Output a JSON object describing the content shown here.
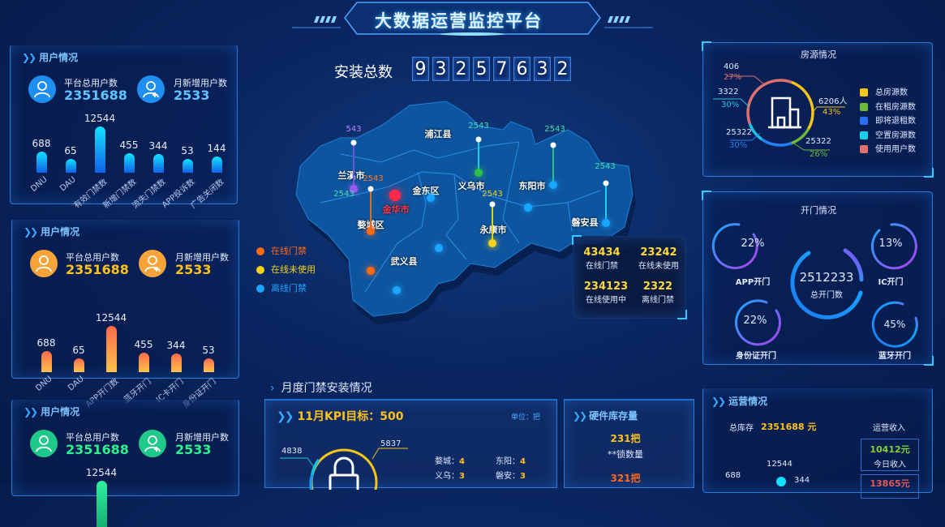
{
  "header": {
    "title": "大数据运营监控平台"
  },
  "install": {
    "label": "安装总数",
    "digits": [
      "9",
      "3",
      "2",
      "5",
      "7",
      "6",
      "3",
      "2"
    ]
  },
  "user_panels": [
    {
      "title": "用户情况",
      "total_label": "平台总用户数",
      "total": "2351688",
      "new_label": "月新增用户数",
      "new": "2533",
      "accent": "#1e8ff0",
      "value_color": "#5fc3ff",
      "bars": [
        {
          "label": "DNU",
          "value": 688
        },
        {
          "label": "DAU",
          "value": 65
        },
        {
          "label": "有效门禁数",
          "value": 12544
        },
        {
          "label": "新增门禁数",
          "value": 455
        },
        {
          "label": "流失门禁数",
          "value": 344
        },
        {
          "label": "APP投诉数",
          "value": 53
        },
        {
          "label": "广告关闭数",
          "value": 144
        }
      ]
    },
    {
      "title": "用户情况",
      "total_label": "平台总用户数",
      "total": "2351688",
      "new_label": "月新增用户数",
      "new": "2533",
      "accent": "#f7a33a",
      "value_color": "#ffc21a",
      "bars": [
        {
          "label": "DNU",
          "value": 688
        },
        {
          "label": "DAU",
          "value": 65
        },
        {
          "label": "APP开门数",
          "value": 12544
        },
        {
          "label": "蓝牙开门",
          "value": 455
        },
        {
          "label": "IC卡开门",
          "value": 344
        },
        {
          "label": "身份证开门",
          "value": 53
        }
      ]
    },
    {
      "title": "用户情况",
      "total_label": "平台总用户数",
      "total": "2351688",
      "new_label": "月新增用户数",
      "new": "2533",
      "accent": "#1fc98a",
      "value_color": "#2ef08e",
      "bars": [
        {
          "label": "",
          "value": 12544
        }
      ]
    }
  ],
  "map": {
    "regions": [
      "浦江县",
      "兰溪市",
      "金东区",
      "义乌市",
      "东阳市",
      "金华市",
      "婺城区",
      "永康市",
      "磐安县",
      "武义县"
    ],
    "pin_values": [
      "543",
      "2543",
      "2543",
      "2543",
      "2543",
      "2543",
      "2543"
    ],
    "legend": [
      {
        "label": "在线门禁",
        "color": "#ff6a13"
      },
      {
        "label": "在线未使用",
        "color": "#f2d31a"
      },
      {
        "label": "离线门禁",
        "color": "#1aa6ff"
      }
    ]
  },
  "stats": [
    {
      "value": "43434",
      "label": "在线门禁"
    },
    {
      "value": "23242",
      "label": "在线未使用"
    },
    {
      "value": "234123",
      "label": "在线使用中"
    },
    {
      "value": "2322",
      "label": "离线门禁"
    }
  ],
  "housing": {
    "title": "房源情况",
    "callouts": [
      {
        "value": "406",
        "pct": "27%",
        "color": "#e0706e"
      },
      {
        "value": "3322",
        "pct": "30%",
        "color": "#1ec4e8"
      },
      {
        "value": "25322",
        "pct": "30%",
        "color": "#2a7ff0"
      },
      {
        "value": "6206人",
        "pct": "43%",
        "color": "#f5c518"
      },
      {
        "value": "25322",
        "pct": "26%",
        "color": "#6fba3a"
      }
    ],
    "legend": [
      {
        "label": "总房源数",
        "color": "#f5c518"
      },
      {
        "label": "在租房源数",
        "color": "#6fba3a"
      },
      {
        "label": "即将退租数",
        "color": "#2a6ff0"
      },
      {
        "label": "空置房源数",
        "color": "#18d0f0"
      },
      {
        "label": "使用用户数",
        "color": "#e0706e"
      }
    ]
  },
  "doors": {
    "title": "开门情况",
    "total": "2512233",
    "total_label": "总开门数",
    "gauges": [
      {
        "pct": "22%",
        "label": "APP开门"
      },
      {
        "pct": "13%",
        "label": "IC开门"
      },
      {
        "pct": "22%",
        "label": "身份证开门"
      },
      {
        "pct": "45%",
        "label": "蓝牙开门"
      }
    ]
  },
  "monthly": {
    "title": "月度门禁安装情况",
    "kpi": "11月KPI目标：500",
    "unit": "单位：把",
    "left_value": "4838",
    "right_value": "5837",
    "cities": [
      {
        "name": "婺城：",
        "value": "4"
      },
      {
        "name": "东阳：",
        "value": "4"
      },
      {
        "name": "义乌：",
        "value": "3"
      },
      {
        "name": "磐安：",
        "value": "3"
      }
    ]
  },
  "hardware": {
    "title": "硬件库存量",
    "v1": "231把",
    "l1": "**锁数量",
    "v2": "321把"
  },
  "ops": {
    "title": "运营情况",
    "stock_label": "总库存",
    "stock": "2351688 元",
    "income_label": "运营收入",
    "today": "10412元",
    "today_label": "今日收入",
    "second": "13865元",
    "chart_labels": [
      "688",
      "12544",
      "344"
    ]
  }
}
